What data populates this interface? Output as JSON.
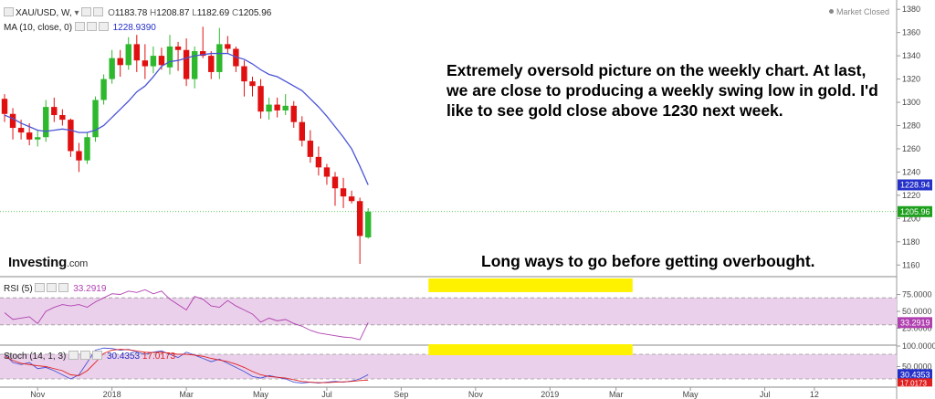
{
  "header": {
    "symbol": "XAU/USD, W,",
    "open_label": "O",
    "open": "1183.78",
    "high_label": "H",
    "high": "1208.87",
    "low_label": "L",
    "low": "1182.69",
    "close_label": "C",
    "close": "1205.96",
    "ma_label": "MA (10, close, 0)",
    "ma_value": "1228.9390",
    "rsi_label": "RSI (5)",
    "rsi_value": "33.2919",
    "stoch_label": "Stoch (14, 1, 3)",
    "stoch_k": "30.4353",
    "stoch_d": "17.0173",
    "status": "Market Closed"
  },
  "logo": {
    "main": "Investing",
    "domain": ".com"
  },
  "annotations": {
    "main": "Extremely oversold picture on the weekly chart. At last, we are close to producing a weekly swing low in gold. I'd like to see gold close above 1230 next week.",
    "bottom": "Long ways to go before getting overbought."
  },
  "colors": {
    "up": "#2eb82e",
    "down": "#e01010",
    "ma": "#4a55d6",
    "rsi": "#b040b0",
    "stoch_k": "#4a55d6",
    "stoch_d": "#e02020",
    "band": "#ead0ea",
    "highlight": "#fff200",
    "price_tag": "#1ea01e",
    "ma_tag": "#2430c8"
  },
  "chart_data": [
    {
      "type": "candlestick",
      "title": "XAU/USD, W,",
      "y_ticks": [
        1160,
        1180,
        1200,
        1220,
        1240,
        1260,
        1280,
        1300,
        1320,
        1340,
        1360,
        1380
      ],
      "ylim": [
        1150,
        1388
      ],
      "x_tick_labels": [
        "Nov",
        "2018",
        "Mar",
        "May",
        "Jul",
        "Sep",
        "Nov",
        "2019",
        "Mar",
        "May",
        "Jul",
        "12"
      ],
      "x_tick_weeks": [
        4,
        13,
        22,
        31,
        39,
        48,
        57,
        66,
        74,
        83,
        92,
        98
      ],
      "candles": [
        [
          1303,
          1307,
          1283,
          1290
        ],
        [
          1290,
          1295,
          1268,
          1278
        ],
        [
          1278,
          1285,
          1268,
          1274
        ],
        [
          1274,
          1282,
          1263,
          1268
        ],
        [
          1268,
          1276,
          1262,
          1270
        ],
        [
          1270,
          1302,
          1266,
          1296
        ],
        [
          1296,
          1304,
          1283,
          1289
        ],
        [
          1289,
          1294,
          1280,
          1285
        ],
        [
          1285,
          1286,
          1253,
          1258
        ],
        [
          1258,
          1265,
          1240,
          1250
        ],
        [
          1250,
          1274,
          1247,
          1270
        ],
        [
          1270,
          1305,
          1266,
          1302
        ],
        [
          1302,
          1324,
          1298,
          1320
        ],
        [
          1320,
          1345,
          1316,
          1338
        ],
        [
          1338,
          1345,
          1322,
          1332
        ],
        [
          1332,
          1356,
          1328,
          1350
        ],
        [
          1350,
          1358,
          1326,
          1336
        ],
        [
          1336,
          1350,
          1320,
          1331
        ],
        [
          1331,
          1348,
          1325,
          1340
        ],
        [
          1340,
          1347,
          1328,
          1332
        ],
        [
          1330,
          1358,
          1324,
          1348
        ],
        [
          1348,
          1352,
          1327,
          1345
        ],
        [
          1345,
          1355,
          1314,
          1320
        ],
        [
          1320,
          1348,
          1312,
          1344
        ],
        [
          1344,
          1365,
          1338,
          1340
        ],
        [
          1340,
          1344,
          1320,
          1326
        ],
        [
          1326,
          1364,
          1320,
          1350
        ],
        [
          1350,
          1357,
          1342,
          1346
        ],
        [
          1346,
          1348,
          1326,
          1331
        ],
        [
          1331,
          1336,
          1305,
          1318
        ],
        [
          1318,
          1322,
          1305,
          1314
        ],
        [
          1314,
          1320,
          1286,
          1292
        ],
        [
          1292,
          1304,
          1285,
          1298
        ],
        [
          1298,
          1304,
          1287,
          1293
        ],
        [
          1293,
          1307,
          1289,
          1297
        ],
        [
          1297,
          1301,
          1278,
          1283
        ],
        [
          1283,
          1288,
          1262,
          1267
        ],
        [
          1267,
          1276,
          1248,
          1253
        ],
        [
          1253,
          1262,
          1237,
          1244
        ],
        [
          1244,
          1247,
          1229,
          1236
        ],
        [
          1236,
          1240,
          1211,
          1226
        ],
        [
          1226,
          1235,
          1209,
          1219
        ],
        [
          1219,
          1224,
          1213,
          1215
        ],
        [
          1215,
          1218,
          1161,
          1185
        ],
        [
          1183.78,
          1208.87,
          1182.69,
          1205.96
        ]
      ],
      "ma": [
        1289,
        1286,
        1282,
        1279,
        1276,
        1275,
        1276,
        1277,
        1276,
        1274,
        1274,
        1276,
        1280,
        1287,
        1294,
        1301,
        1309,
        1314,
        1322,
        1331,
        1335,
        1336,
        1338,
        1340,
        1341,
        1342,
        1342,
        1342,
        1339,
        1337,
        1333,
        1328,
        1324,
        1322,
        1318,
        1314,
        1310,
        1303,
        1296,
        1288,
        1279,
        1270,
        1260,
        1245,
        1228.939
      ],
      "last_price": 1205.96,
      "last_ma": 1228.94
    },
    {
      "type": "line",
      "title": "RSI (5)",
      "y_ticks": [
        25,
        50,
        75
      ],
      "ylim": [
        0,
        100
      ],
      "band": [
        30,
        70
      ],
      "values": [
        48,
        38,
        40,
        42,
        32,
        50,
        56,
        60,
        58,
        60,
        56,
        64,
        70,
        76,
        75,
        80,
        78,
        82,
        76,
        80,
        68,
        60,
        52,
        72,
        68,
        58,
        56,
        66,
        58,
        52,
        46,
        34,
        40,
        36,
        38,
        32,
        28,
        22,
        18,
        16,
        14,
        12,
        11,
        8,
        33.2919
      ]
    },
    {
      "type": "line",
      "title": "Stoch (14, 1, 3)",
      "y_ticks": [
        50,
        100
      ],
      "ylim": [
        0,
        100
      ],
      "band": [
        20,
        80
      ],
      "k": [
        80,
        60,
        55,
        60,
        45,
        48,
        40,
        30,
        20,
        30,
        60,
        90,
        95,
        94,
        90,
        92,
        85,
        80,
        85,
        88,
        80,
        72,
        85,
        78,
        70,
        62,
        68,
        58,
        48,
        38,
        26,
        22,
        28,
        24,
        20,
        12,
        10,
        12,
        10,
        12,
        14,
        12,
        15,
        20,
        30.4353
      ],
      "d": [
        75,
        65,
        58,
        55,
        52,
        50,
        45,
        40,
        30,
        28,
        40,
        60,
        82,
        90,
        92,
        91,
        88,
        85,
        84,
        85,
        82,
        80,
        80,
        78,
        75,
        70,
        66,
        62,
        56,
        48,
        38,
        30,
        26,
        24,
        22,
        18,
        14,
        12,
        11,
        11,
        12,
        13,
        14,
        16,
        17.0173
      ]
    }
  ]
}
